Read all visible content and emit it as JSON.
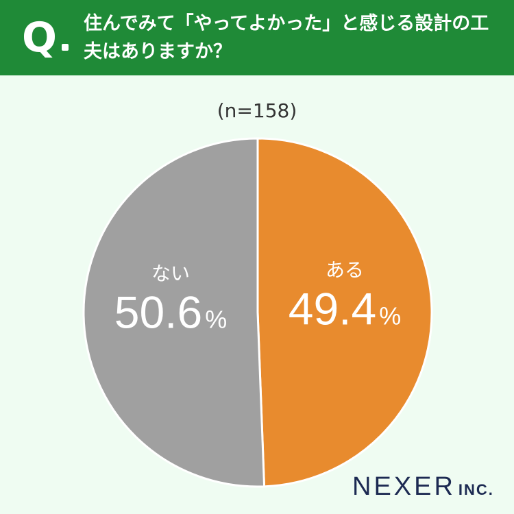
{
  "header": {
    "q_mark": "Q",
    "question": "住んでみて「やってよかった」と感じる設計の工夫はありますか？",
    "background_color": "#1f8a37"
  },
  "sample_size": "(n=158)",
  "logo": {
    "brand": "NEXER",
    "suffix": "INC."
  },
  "chart_data": {
    "type": "pie",
    "title": "",
    "start": "12 o'clock, clockwise",
    "slices": [
      {
        "label": "ある",
        "value": 49.4,
        "display": "49.4",
        "unit": "%",
        "color": "#e88b2e"
      },
      {
        "label": "ない",
        "value": 50.6,
        "display": "50.6",
        "unit": "%",
        "color": "#a0a0a0"
      }
    ]
  }
}
